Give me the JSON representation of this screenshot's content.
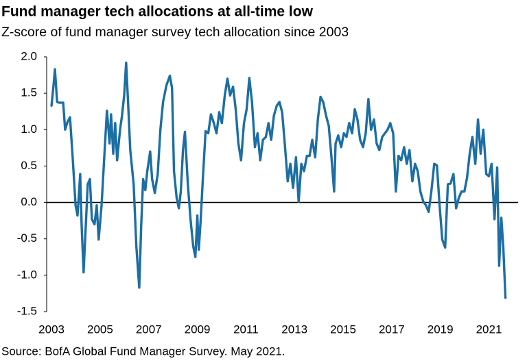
{
  "chart_data": {
    "type": "line",
    "title": "Fund manager tech allocations at all-time low",
    "subtitle": "Z-score of fund manager survey tech allocation since 2003",
    "source": "Source: BofA Global Fund Manager Survey. May 2021.",
    "xlim": [
      2002.8,
      2022.2
    ],
    "xticks": [
      2003,
      2005,
      2007,
      2009,
      2011,
      2013,
      2015,
      2017,
      2019,
      2021
    ],
    "ylim": [
      -1.5,
      2.0
    ],
    "yticks": [
      {
        "value": 2.0,
        "label": "2.0"
      },
      1.5,
      {
        "value": 1.0,
        "label": "1.0"
      },
      0.5,
      {
        "value": 0.0,
        "label": "0.0"
      },
      -0.5,
      {
        "value": -1.0,
        "label": "-1.0"
      },
      -1.5
    ],
    "grid": false,
    "color": "#1c6ea4",
    "x": [
      2003.0,
      2003.08,
      2003.14,
      2003.23,
      2003.31,
      2003.48,
      2003.56,
      2003.65,
      2003.76,
      2003.87,
      2003.99,
      2004.07,
      2004.18,
      2004.24,
      2004.32,
      2004.41,
      2004.49,
      2004.58,
      2004.66,
      2004.77,
      2004.86,
      2004.94,
      2005.06,
      2005.17,
      2005.28,
      2005.39,
      2005.45,
      2005.54,
      2005.62,
      2005.7,
      2005.82,
      2005.9,
      2005.99,
      2006.07,
      2006.15,
      2006.24,
      2006.38,
      2006.49,
      2006.61,
      2006.69,
      2006.77,
      2006.86,
      2006.94,
      2007.06,
      2007.14,
      2007.25,
      2007.37,
      2007.48,
      2007.59,
      2007.73,
      2007.87,
      2007.96,
      2008.04,
      2008.15,
      2008.24,
      2008.32,
      2008.41,
      2008.49,
      2008.61,
      2008.72,
      2008.83,
      2008.92,
      2009.0,
      2009.06,
      2009.14,
      2009.23,
      2009.34,
      2009.45,
      2009.56,
      2009.68,
      2009.79,
      2009.9,
      2010.01,
      2010.13,
      2010.24,
      2010.35,
      2010.47,
      2010.58,
      2010.69,
      2010.8,
      2010.92,
      2011.03,
      2011.14,
      2011.25,
      2011.37,
      2011.48,
      2011.59,
      2011.7,
      2011.82,
      2011.93,
      2012.04,
      2012.15,
      2012.27,
      2012.38,
      2012.49,
      2012.61,
      2012.72,
      2012.83,
      2012.94,
      2013.06,
      2013.17,
      2013.28,
      2013.39,
      2013.51,
      2013.62,
      2013.73,
      2013.85,
      2013.96,
      2014.07,
      2014.18,
      2014.3,
      2014.41,
      2014.52,
      2014.63,
      2014.69,
      2014.8,
      2014.92,
      2015.03,
      2015.14,
      2015.25,
      2015.37,
      2015.48,
      2015.59,
      2015.7,
      2015.82,
      2015.93,
      2016.04,
      2016.15,
      2016.27,
      2016.38,
      2016.49,
      2016.61,
      2016.72,
      2016.83,
      2016.94,
      2017.06,
      2017.17,
      2017.28,
      2017.39,
      2017.51,
      2017.62,
      2017.73,
      2017.85,
      2017.96,
      2018.07,
      2018.18,
      2018.3,
      2018.41,
      2018.52,
      2018.63,
      2018.75,
      2018.86,
      2018.97,
      2019.08,
      2019.2,
      2019.31,
      2019.42,
      2019.54,
      2019.65,
      2019.76,
      2019.87,
      2019.99,
      2020.1,
      2020.21,
      2020.32,
      2020.44,
      2020.55,
      2020.66,
      2020.77,
      2020.89,
      2021.0,
      2021.11,
      2021.23,
      2021.34,
      2021.42,
      2021.51,
      2021.59,
      2021.68
    ],
    "values": [
      1.33,
      1.6,
      1.83,
      1.38,
      1.37,
      1.37,
      1.0,
      1.1,
      1.17,
      0.62,
      -0.04,
      -0.18,
      0.39,
      -0.32,
      -0.96,
      -0.32,
      0.25,
      0.32,
      -0.23,
      -0.3,
      -0.04,
      -0.51,
      -0.04,
      0.62,
      1.26,
      0.81,
      1.21,
      0.67,
      1.09,
      0.58,
      1.0,
      1.19,
      1.47,
      1.92,
      1.38,
      0.72,
      0.25,
      -0.6,
      -1.17,
      -0.32,
      0.32,
      0.17,
      0.43,
      0.7,
      0.32,
      0.13,
      0.39,
      1.0,
      1.38,
      1.61,
      1.74,
      1.57,
      0.43,
      0.06,
      -0.08,
      0.15,
      0.72,
      0.97,
      0.25,
      -0.23,
      -0.6,
      -0.75,
      -0.18,
      -0.65,
      -0.23,
      0.34,
      0.98,
      0.95,
      1.21,
      1.09,
      0.95,
      1.24,
      1.09,
      1.47,
      1.7,
      1.47,
      1.59,
      1.28,
      0.81,
      0.58,
      1.09,
      1.28,
      1.71,
      1.38,
      0.76,
      0.95,
      0.58,
      0.86,
      0.9,
      1.09,
      0.86,
      1.19,
      1.33,
      1.38,
      1.24,
      0.76,
      0.29,
      0.53,
      0.2,
      0.62,
      0.01,
      0.53,
      0.43,
      0.64,
      0.64,
      0.86,
      0.62,
      1.14,
      1.45,
      1.38,
      1.19,
      1.05,
      0.62,
      0.15,
      0.81,
      0.92,
      0.76,
      0.95,
      0.9,
      1.09,
      0.95,
      1.28,
      1.14,
      0.86,
      0.76,
      0.95,
      1.42,
      1.0,
      1.14,
      0.81,
      0.72,
      0.9,
      0.95,
      1.0,
      1.09,
      0.95,
      0.15,
      0.64,
      0.58,
      0.76,
      0.53,
      0.72,
      0.29,
      0.53,
      0.43,
      0.15,
      0.01,
      -0.04,
      -0.13,
      0.15,
      0.53,
      0.51,
      -0.04,
      -0.51,
      -0.62,
      0.25,
      0.26,
      0.39,
      -0.08,
      0.06,
      0.15,
      0.15,
      0.34,
      0.67,
      0.9,
      0.53,
      1.14,
      0.67,
      1.0,
      0.39,
      0.36,
      0.53,
      -0.23,
      0.48,
      -0.87,
      -0.21,
      -0.6,
      -1.31
    ]
  }
}
